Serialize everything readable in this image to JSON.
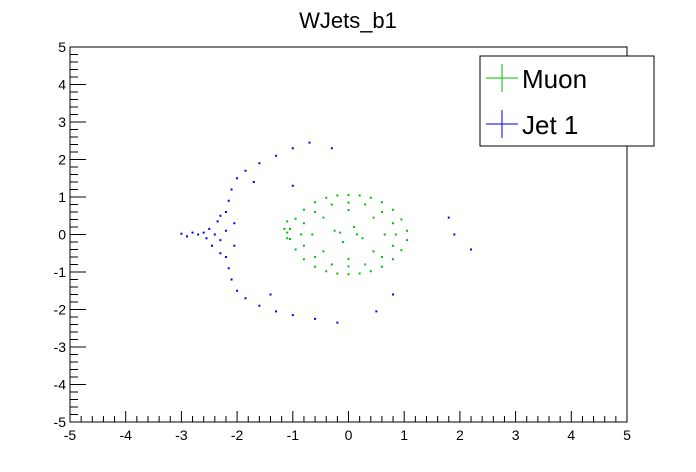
{
  "chart_data": {
    "type": "scatter",
    "title": "WJets_b1",
    "xlabel": "",
    "ylabel": "",
    "xlim": [
      -5,
      5
    ],
    "ylim": [
      -5,
      5
    ],
    "xticks": [
      -5,
      -4,
      -3,
      -2,
      -1,
      0,
      1,
      2,
      3,
      4,
      5
    ],
    "yticks": [
      -5,
      -4,
      -3,
      -2,
      -1,
      0,
      1,
      2,
      3,
      4,
      5
    ],
    "grid": false,
    "legend_position": "top-right",
    "series": [
      {
        "name": "Muon",
        "color": "#00c000",
        "points": [
          [
            0.0,
            1.05
          ],
          [
            0.2,
            1.04
          ],
          [
            0.4,
            0.98
          ],
          [
            0.6,
            0.86
          ],
          [
            0.8,
            0.66
          ],
          [
            0.95,
            0.4
          ],
          [
            1.05,
            0.1
          ],
          [
            1.05,
            -0.15
          ],
          [
            0.95,
            -0.42
          ],
          [
            0.8,
            -0.66
          ],
          [
            0.6,
            -0.86
          ],
          [
            0.4,
            -0.98
          ],
          [
            0.2,
            -1.04
          ],
          [
            0.0,
            -1.06
          ],
          [
            -0.2,
            -1.04
          ],
          [
            -0.4,
            -0.98
          ],
          [
            -0.6,
            -0.86
          ],
          [
            -0.8,
            -0.66
          ],
          [
            -0.95,
            -0.4
          ],
          [
            -1.05,
            -0.12
          ],
          [
            -1.05,
            0.15
          ],
          [
            -0.95,
            0.42
          ],
          [
            -0.8,
            0.66
          ],
          [
            -0.6,
            0.86
          ],
          [
            -0.4,
            0.98
          ],
          [
            -0.2,
            1.04
          ],
          [
            0.0,
            0.85
          ],
          [
            0.3,
            0.8
          ],
          [
            0.6,
            0.6
          ],
          [
            0.8,
            0.3
          ],
          [
            0.85,
            0.0
          ],
          [
            0.8,
            -0.3
          ],
          [
            0.6,
            -0.6
          ],
          [
            0.3,
            -0.8
          ],
          [
            0.0,
            -0.85
          ],
          [
            -0.3,
            -0.8
          ],
          [
            -0.6,
            -0.6
          ],
          [
            -0.8,
            -0.3
          ],
          [
            -0.85,
            0.0
          ],
          [
            -0.8,
            0.3
          ],
          [
            -0.6,
            0.6
          ],
          [
            -0.3,
            0.8
          ],
          [
            0.0,
            0.65
          ],
          [
            0.45,
            0.45
          ],
          [
            0.65,
            0.0
          ],
          [
            0.45,
            -0.45
          ],
          [
            0.0,
            -0.65
          ],
          [
            -0.45,
            -0.45
          ],
          [
            -0.65,
            0.0
          ],
          [
            -0.45,
            0.45
          ],
          [
            0.1,
            0.2
          ],
          [
            -0.1,
            -0.2
          ],
          [
            0.25,
            -0.1
          ],
          [
            -0.25,
            0.1
          ],
          [
            0.15,
            0.0
          ],
          [
            -0.15,
            0.05
          ],
          [
            -1.1,
            0.05
          ],
          [
            -1.1,
            -0.1
          ],
          [
            -1.15,
            0.15
          ],
          [
            -1.1,
            0.35
          ]
        ]
      },
      {
        "name": "Jet 1",
        "color": "#0000ee",
        "points": [
          [
            -2.4,
            0.0
          ],
          [
            -2.5,
            0.15
          ],
          [
            -2.3,
            -0.15
          ],
          [
            -2.6,
            0.05
          ],
          [
            -2.2,
            0.1
          ],
          [
            -2.45,
            -0.3
          ],
          [
            -2.35,
            0.35
          ],
          [
            -2.55,
            -0.1
          ],
          [
            -2.7,
            0.0
          ],
          [
            -2.8,
            0.05
          ],
          [
            -2.9,
            -0.05
          ],
          [
            -3.0,
            0.02
          ],
          [
            -2.2,
            0.6
          ],
          [
            -2.15,
            0.9
          ],
          [
            -2.1,
            1.2
          ],
          [
            -2.0,
            1.5
          ],
          [
            -1.85,
            1.7
          ],
          [
            -1.6,
            1.9
          ],
          [
            -1.3,
            2.1
          ],
          [
            -1.0,
            2.3
          ],
          [
            -0.7,
            2.45
          ],
          [
            -0.3,
            2.3
          ],
          [
            -2.2,
            -0.6
          ],
          [
            -2.15,
            -0.9
          ],
          [
            -2.1,
            -1.2
          ],
          [
            -2.0,
            -1.5
          ],
          [
            -1.85,
            -1.7
          ],
          [
            -1.6,
            -1.9
          ],
          [
            -1.3,
            -2.05
          ],
          [
            -1.0,
            -2.15
          ],
          [
            -0.6,
            -2.25
          ],
          [
            -0.2,
            -2.35
          ],
          [
            -2.3,
            0.5
          ],
          [
            -2.3,
            -0.5
          ],
          [
            -2.05,
            0.3
          ],
          [
            -2.05,
            -0.3
          ],
          [
            -1.0,
            1.3
          ],
          [
            -1.7,
            1.4
          ],
          [
            -1.4,
            -1.6
          ],
          [
            1.8,
            0.45
          ],
          [
            1.9,
            0.0
          ],
          [
            2.2,
            -0.4
          ],
          [
            0.8,
            -1.6
          ],
          [
            0.5,
            -2.05
          ]
        ]
      }
    ]
  }
}
